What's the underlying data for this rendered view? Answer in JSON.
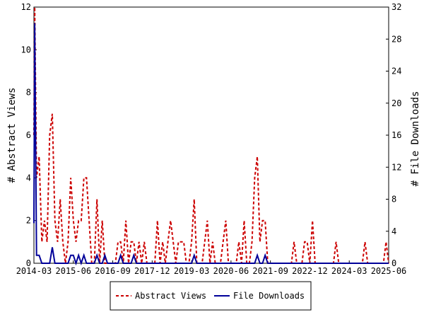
{
  "chart_data": {
    "type": "line",
    "ylabel": "# Abstract Views",
    "ylabel_right": "# File Downloads",
    "ylim": [
      0,
      12
    ],
    "ylim_right": [
      0,
      32
    ],
    "yticks": [
      "0",
      "2",
      "4",
      "6",
      "8",
      "10",
      "12"
    ],
    "yticks_right": [
      "0",
      "4",
      "8",
      "12",
      "16",
      "20",
      "24",
      "28",
      "32"
    ],
    "xticks": [
      "2014-03",
      "2015-06",
      "2016-09",
      "2017-12",
      "2019-03",
      "2020-06",
      "2021-09",
      "2022-12",
      "2024-03",
      "2025-06"
    ],
    "xlim_months": [
      0,
      135
    ],
    "grid": false,
    "legend_position": "bottom",
    "series": [
      {
        "name": "Abstract Views",
        "color": "#cc0000",
        "style": "dashed",
        "axis": "left",
        "points": [
          [
            0,
            6
          ],
          [
            0.3,
            12
          ],
          [
            1,
            4
          ],
          [
            2,
            5
          ],
          [
            3,
            1
          ],
          [
            4,
            2
          ],
          [
            5,
            1
          ],
          [
            6,
            6
          ],
          [
            7,
            7
          ],
          [
            8,
            2
          ],
          [
            9,
            1
          ],
          [
            10,
            3
          ],
          [
            11,
            1
          ],
          [
            12,
            0
          ],
          [
            13,
            1
          ],
          [
            14,
            4
          ],
          [
            15,
            2
          ],
          [
            16,
            1
          ],
          [
            17,
            2
          ],
          [
            18,
            2
          ],
          [
            19,
            4
          ],
          [
            20,
            4
          ],
          [
            21,
            2
          ],
          [
            22,
            0
          ],
          [
            23,
            0
          ],
          [
            24,
            3
          ],
          [
            25,
            0
          ],
          [
            26,
            2
          ],
          [
            27,
            0
          ],
          [
            28,
            0
          ],
          [
            29,
            0
          ],
          [
            30,
            0
          ],
          [
            31,
            0
          ],
          [
            32,
            1
          ],
          [
            33,
            1
          ],
          [
            34,
            0
          ],
          [
            35,
            2
          ],
          [
            36,
            0
          ],
          [
            37,
            1
          ],
          [
            38,
            1
          ],
          [
            39,
            0
          ],
          [
            40,
            1
          ],
          [
            41,
            0
          ],
          [
            42,
            1
          ],
          [
            43,
            0
          ],
          [
            44,
            0
          ],
          [
            45,
            0
          ],
          [
            46,
            0
          ],
          [
            47,
            2
          ],
          [
            48,
            0
          ],
          [
            49,
            1
          ],
          [
            50,
            0
          ],
          [
            51,
            1
          ],
          [
            52,
            2
          ],
          [
            53,
            1
          ],
          [
            54,
            0
          ],
          [
            55,
            1
          ],
          [
            56,
            1
          ],
          [
            57,
            1
          ],
          [
            58,
            0
          ],
          [
            59,
            0
          ],
          [
            60,
            1
          ],
          [
            61,
            3
          ],
          [
            62,
            0
          ],
          [
            63,
            0
          ],
          [
            64,
            0
          ],
          [
            65,
            1
          ],
          [
            66,
            2
          ],
          [
            67,
            0
          ],
          [
            68,
            1
          ],
          [
            69,
            0
          ],
          [
            70,
            0
          ],
          [
            71,
            0
          ],
          [
            72,
            1
          ],
          [
            73,
            2
          ],
          [
            74,
            0
          ],
          [
            75,
            0
          ],
          [
            76,
            0
          ],
          [
            77,
            0
          ],
          [
            78,
            1
          ],
          [
            79,
            0
          ],
          [
            80,
            2
          ],
          [
            81,
            0
          ],
          [
            82,
            0
          ],
          [
            83,
            1
          ],
          [
            84,
            4
          ],
          [
            85,
            5
          ],
          [
            86,
            1
          ],
          [
            87,
            2
          ],
          [
            88,
            2
          ],
          [
            89,
            0
          ],
          [
            90,
            0
          ],
          [
            91,
            0
          ],
          [
            92,
            0
          ],
          [
            93,
            0
          ],
          [
            94,
            0
          ],
          [
            95,
            0
          ],
          [
            96,
            0
          ],
          [
            97,
            0
          ],
          [
            98,
            0
          ],
          [
            99,
            1
          ],
          [
            100,
            0
          ],
          [
            101,
            0
          ],
          [
            102,
            0
          ],
          [
            103,
            1
          ],
          [
            104,
            1
          ],
          [
            105,
            0
          ],
          [
            106,
            2
          ],
          [
            107,
            0
          ],
          [
            108,
            0
          ],
          [
            109,
            0
          ],
          [
            110,
            0
          ],
          [
            111,
            0
          ],
          [
            112,
            0
          ],
          [
            113,
            0
          ],
          [
            114,
            0
          ],
          [
            115,
            1
          ],
          [
            116,
            0
          ],
          [
            117,
            0
          ],
          [
            118,
            0
          ],
          [
            119,
            0
          ],
          [
            120,
            0
          ],
          [
            121,
            0
          ],
          [
            122,
            0
          ],
          [
            123,
            0
          ],
          [
            124,
            0
          ],
          [
            125,
            0
          ],
          [
            126,
            1
          ],
          [
            127,
            0
          ],
          [
            128,
            0
          ],
          [
            129,
            0
          ],
          [
            130,
            0
          ],
          [
            131,
            0
          ],
          [
            132,
            0
          ],
          [
            133,
            0
          ],
          [
            134,
            1
          ],
          [
            135,
            0
          ]
        ]
      },
      {
        "name": "File Downloads",
        "color": "#000099",
        "style": "solid",
        "axis": "right",
        "points": [
          [
            0,
            5
          ],
          [
            0.3,
            30
          ],
          [
            1,
            1
          ],
          [
            2,
            1
          ],
          [
            3,
            0
          ],
          [
            4,
            0
          ],
          [
            5,
            0
          ],
          [
            6,
            0
          ],
          [
            7,
            2
          ],
          [
            8,
            0
          ],
          [
            9,
            0
          ],
          [
            10,
            0
          ],
          [
            11,
            0
          ],
          [
            12,
            0
          ],
          [
            13,
            0
          ],
          [
            14,
            1
          ],
          [
            15,
            1
          ],
          [
            16,
            0
          ],
          [
            17,
            1
          ],
          [
            18,
            0
          ],
          [
            19,
            1
          ],
          [
            20,
            0
          ],
          [
            21,
            0
          ],
          [
            22,
            0
          ],
          [
            23,
            0
          ],
          [
            24,
            1
          ],
          [
            25,
            0
          ],
          [
            26,
            0
          ],
          [
            27,
            1
          ],
          [
            28,
            0
          ],
          [
            29,
            0
          ],
          [
            30,
            0
          ],
          [
            31,
            0
          ],
          [
            32,
            0
          ],
          [
            33,
            1
          ],
          [
            34,
            0
          ],
          [
            35,
            0
          ],
          [
            36,
            0
          ],
          [
            37,
            0
          ],
          [
            38,
            1
          ],
          [
            39,
            0
          ],
          [
            40,
            0
          ],
          [
            41,
            0
          ],
          [
            42,
            0
          ],
          [
            43,
            0
          ],
          [
            44,
            0
          ],
          [
            45,
            0
          ],
          [
            46,
            0
          ],
          [
            47,
            0
          ],
          [
            48,
            0
          ],
          [
            49,
            0
          ],
          [
            50,
            0
          ],
          [
            51,
            0
          ],
          [
            52,
            0
          ],
          [
            53,
            0
          ],
          [
            54,
            0
          ],
          [
            55,
            0
          ],
          [
            56,
            0
          ],
          [
            57,
            0
          ],
          [
            58,
            0
          ],
          [
            59,
            0
          ],
          [
            60,
            0
          ],
          [
            61,
            1
          ],
          [
            62,
            0
          ],
          [
            63,
            0
          ],
          [
            64,
            0
          ],
          [
            65,
            0
          ],
          [
            66,
            0
          ],
          [
            67,
            0
          ],
          [
            68,
            0
          ],
          [
            69,
            0
          ],
          [
            70,
            0
          ],
          [
            71,
            0
          ],
          [
            72,
            0
          ],
          [
            73,
            0
          ],
          [
            74,
            0
          ],
          [
            75,
            0
          ],
          [
            76,
            0
          ],
          [
            77,
            0
          ],
          [
            78,
            0
          ],
          [
            79,
            0
          ],
          [
            80,
            0
          ],
          [
            81,
            0
          ],
          [
            82,
            0
          ],
          [
            83,
            0
          ],
          [
            84,
            0
          ],
          [
            85,
            1
          ],
          [
            86,
            0
          ],
          [
            87,
            0
          ],
          [
            88,
            1
          ],
          [
            89,
            0
          ],
          [
            90,
            0
          ],
          [
            91,
            0
          ],
          [
            92,
            0
          ],
          [
            93,
            0
          ],
          [
            94,
            0
          ],
          [
            95,
            0
          ],
          [
            96,
            0
          ],
          [
            97,
            0
          ],
          [
            98,
            0
          ],
          [
            99,
            0
          ],
          [
            100,
            0
          ],
          [
            101,
            0
          ],
          [
            102,
            0
          ],
          [
            103,
            0
          ],
          [
            104,
            0
          ],
          [
            105,
            0
          ],
          [
            106,
            0
          ],
          [
            107,
            0
          ],
          [
            108,
            0
          ],
          [
            109,
            0
          ],
          [
            110,
            0
          ],
          [
            111,
            0
          ],
          [
            112,
            0
          ],
          [
            113,
            0
          ],
          [
            114,
            0
          ],
          [
            115,
            0
          ],
          [
            116,
            0
          ],
          [
            117,
            0
          ],
          [
            118,
            0
          ],
          [
            119,
            0
          ],
          [
            120,
            0
          ],
          [
            121,
            0
          ],
          [
            122,
            0
          ],
          [
            123,
            0
          ],
          [
            124,
            0
          ],
          [
            125,
            0
          ],
          [
            126,
            0
          ],
          [
            127,
            0
          ],
          [
            128,
            0
          ],
          [
            129,
            0
          ],
          [
            130,
            0
          ],
          [
            131,
            0
          ],
          [
            132,
            0
          ],
          [
            133,
            0
          ],
          [
            134,
            0
          ],
          [
            135,
            0
          ]
        ]
      }
    ]
  }
}
